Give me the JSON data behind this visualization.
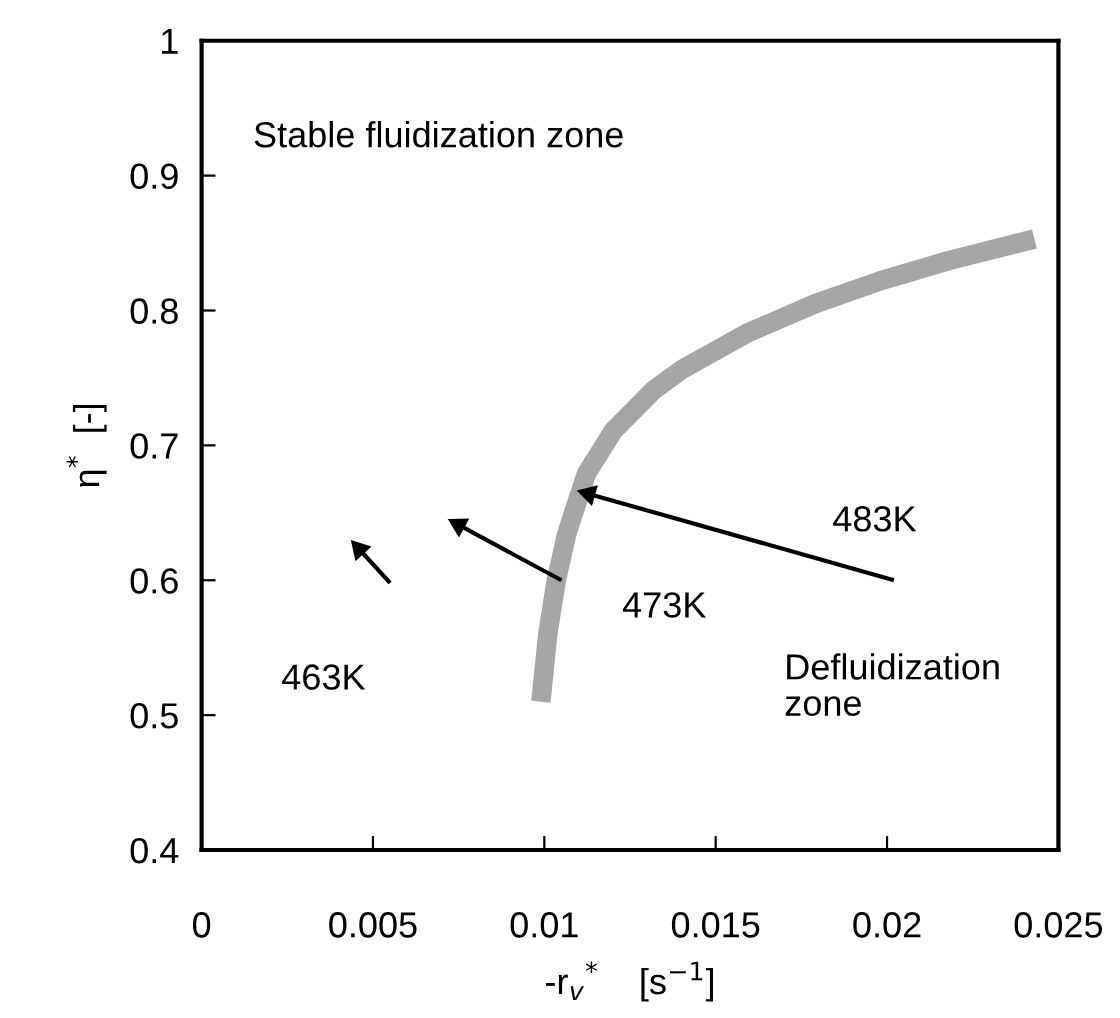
{
  "chart_data": {
    "type": "line",
    "xlabel": "-r$_{v}$$^{*}$    [s$^{−1}$]",
    "ylabel": "η$^{*}$  [-]",
    "xlim": [
      0,
      0.025
    ],
    "ylim": [
      0.4,
      1
    ],
    "xticks": [
      0,
      0.005,
      0.01,
      0.015,
      0.02,
      0.025
    ],
    "yticks": [
      0.4,
      0.5,
      0.6,
      0.7,
      0.8,
      0.9,
      1
    ],
    "grid": false,
    "legend": false,
    "marker": "none",
    "line_style": "solid",
    "series": [
      {
        "color": "#a6a6a6",
        "x": [
          0.0099,
          0.0101,
          0.01035,
          0.01065,
          0.01084,
          0.01123,
          0.01202,
          0.01319,
          0.014,
          0.0159,
          0.0179,
          0.0198,
          0.0218,
          0.0243
        ],
        "values": [
          0.51,
          0.56,
          0.6,
          0.634,
          0.649,
          0.679,
          0.711,
          0.741,
          0.756,
          0.783,
          0.805,
          0.822,
          0.837,
          0.853
        ]
      },
      {
        "color": "#000000",
        "marker": "triangle",
        "x": [
          0.0055,
          0.0046
        ],
        "values": [
          0.598,
          0.623
        ]
      },
      {
        "color": "#000000",
        "marker": "triangle",
        "x": [
          0.0105,
          0.0075
        ],
        "values": [
          0.6,
          0.641
        ]
      },
      {
        "color": "#000000",
        "marker": "triangle",
        "x": [
          0.0202,
          0.0113
        ],
        "values": [
          0.6,
          0.664
        ]
      }
    ],
    "annotations": [
      "Stable fluidization zone",
      "Defluidization\nzone",
      "463K",
      "473K",
      "483K"
    ]
  }
}
